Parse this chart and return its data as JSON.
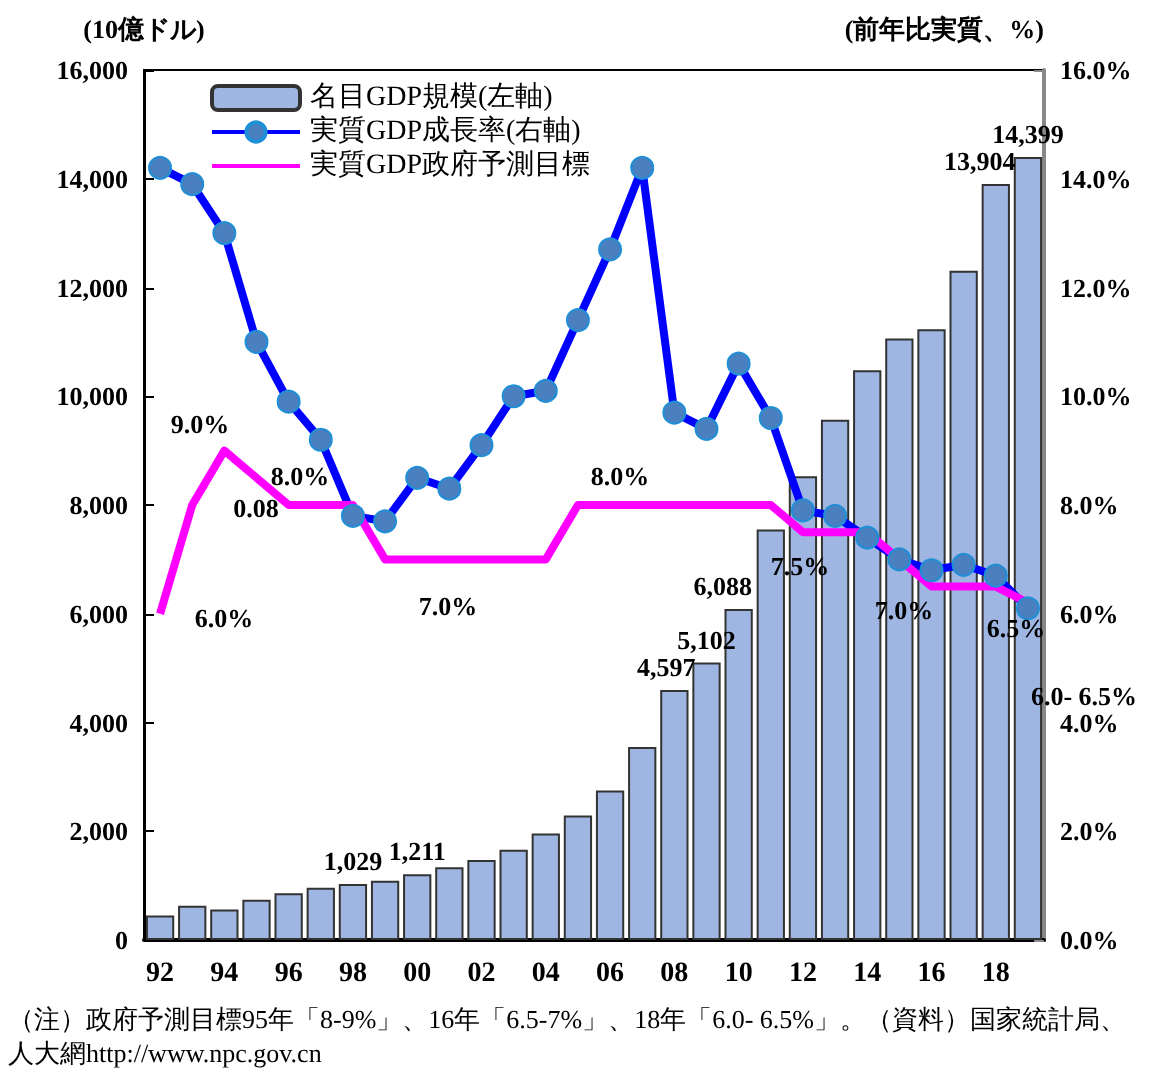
{
  "chart_data": {
    "type": "bar",
    "ylabel": "(10億ドル)",
    "y2label": "(前年比実質、%)",
    "categories": [
      "92",
      null,
      "94",
      null,
      "96",
      null,
      "98",
      null,
      "00",
      null,
      "02",
      null,
      "04",
      null,
      "06",
      null,
      "08",
      null,
      "10",
      null,
      "12",
      null,
      "14",
      null,
      "16",
      null,
      "18",
      null
    ],
    "series": [
      {
        "name": "名目GDP規模(左軸)",
        "color": "#9fb6e2",
        "values": [
          450,
          630,
          560,
          740,
          860,
          960,
          1029,
          1090,
          1211,
          1340,
          1470,
          1660,
          1960,
          2290,
          2750,
          3550,
          4597,
          5102,
          6088,
          7550,
          8530,
          9570,
          10480,
          11060,
          11230,
          12310,
          13904,
          14399
        ],
        "value_labels": [
          null,
          null,
          null,
          null,
          null,
          null,
          "1,029",
          null,
          "1,211",
          null,
          null,
          null,
          null,
          null,
          null,
          null,
          "4,597",
          "5,102",
          "6,088",
          null,
          null,
          null,
          null,
          null,
          null,
          null,
          "13,904",
          "14,399"
        ]
      },
      {
        "name": "実質GDP成長率(右軸)",
        "type": "line",
        "axis": "y2",
        "color": "#0000ff",
        "marker": "circle",
        "values": [
          14.2,
          13.9,
          13.0,
          11.0,
          9.9,
          9.2,
          7.8,
          7.7,
          8.5,
          8.3,
          9.1,
          10.0,
          10.1,
          11.4,
          12.7,
          14.2,
          9.7,
          9.4,
          10.6,
          9.6,
          7.9,
          7.8,
          7.4,
          7.0,
          6.8,
          6.9,
          6.7,
          6.1
        ]
      },
      {
        "name": "実質GDP政府予測目標",
        "type": "line",
        "axis": "y2",
        "color": "#ff00ff",
        "marker": "none",
        "values": [
          6.0,
          8.0,
          9.0,
          8.5,
          8.0,
          8.0,
          8.0,
          7.0,
          7.0,
          7.0,
          7.0,
          7.0,
          7.0,
          8.0,
          8.0,
          8.0,
          8.0,
          8.0,
          8.0,
          8.0,
          7.5,
          7.5,
          7.5,
          7.0,
          6.5,
          6.5,
          6.5,
          6.2
        ]
      }
    ],
    "ylim": [
      0,
      16000
    ],
    "yticks": [
      {
        "value": 0,
        "label": "0"
      },
      {
        "value": 2000,
        "label": "2,000"
      },
      {
        "value": 4000,
        "label": "4,000"
      },
      {
        "value": 6000,
        "label": "6,000"
      },
      {
        "value": 8000,
        "label": "8,000"
      },
      {
        "value": 10000,
        "label": "10,000"
      },
      {
        "value": 12000,
        "label": "12,000"
      },
      {
        "value": 14000,
        "label": "14,000"
      },
      {
        "value": 16000,
        "label": "16,000"
      }
    ],
    "y2lim": [
      0,
      16
    ],
    "y2ticks": [
      {
        "value": 0,
        "label": "0.0%"
      },
      {
        "value": 2,
        "label": "2.0%"
      },
      {
        "value": 4,
        "label": "4.0%"
      },
      {
        "value": 6,
        "label": "6.0%"
      },
      {
        "value": 8,
        "label": "8.0%"
      },
      {
        "value": 10,
        "label": "10.0%"
      },
      {
        "value": 12,
        "label": "12.0%"
      },
      {
        "value": 14,
        "label": "14.0%"
      },
      {
        "value": 16,
        "label": "16.0%"
      }
    ],
    "grid": false,
    "legend": "top left",
    "annotations": [
      "9.0%",
      "8.0%",
      "0.08",
      "6.0%",
      "7.0%",
      "8.0%",
      "7.5%",
      "7.0%",
      "6.5%",
      "6.0- 6.5%",
      "（注）政府予測目標95年「8-9%」、16年「6.5-7%」、18年「6.0- 6.5%」。（資料）国家統計局、人大網http://www.npc.gov.cn"
    ]
  }
}
